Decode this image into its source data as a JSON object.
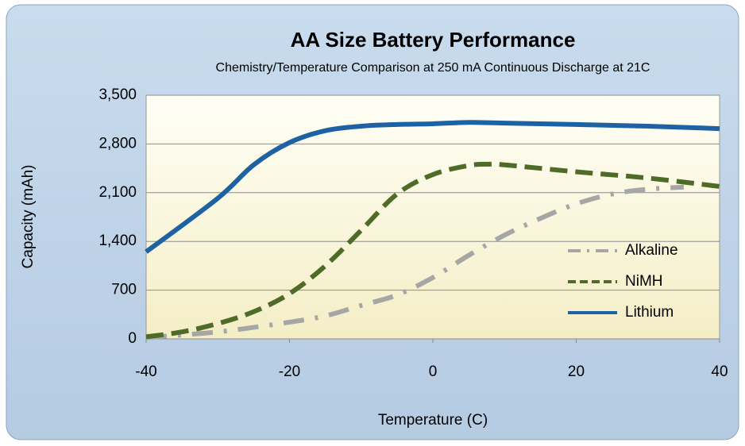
{
  "chart_data": {
    "type": "line",
    "title": "AA Size Battery Performance",
    "subtitle": "Chemistry/Temperature Comparison at 250 mA Continuous Discharge at 21C",
    "x_label": "Temperature (C)",
    "y_label": "Capacity (mAh)",
    "xlim": [
      -40,
      40
    ],
    "xticks": [
      -40,
      -20,
      0,
      20,
      40
    ],
    "ylim": [
      0,
      3500
    ],
    "yticks": [
      0,
      700,
      {
        "value": 1400,
        "label": "1,400"
      },
      {
        "value": 2100,
        "label": "2,100"
      },
      {
        "value": 2800,
        "label": "2,800"
      },
      {
        "value": 3500,
        "label": "3,500"
      }
    ],
    "grid": true,
    "legend": "right",
    "series": [
      {
        "name": "Alkaline",
        "color": "#a6a6a6",
        "style": "dash-dot",
        "x": [
          -40,
          -30,
          -20,
          -15,
          -10,
          -5,
          0,
          5,
          10,
          15,
          20,
          25,
          30,
          35
        ],
        "values": [
          20,
          100,
          240,
          330,
          480,
          630,
          880,
          1200,
          1490,
          1730,
          1940,
          2080,
          2150,
          2180
        ]
      },
      {
        "name": "NiMH",
        "color": "#4f6b28",
        "style": "dashed",
        "x": [
          -40,
          -35,
          -30,
          -25,
          -20,
          -15,
          -10,
          -5,
          0,
          5,
          8,
          10,
          20,
          30,
          40
        ],
        "values": [
          30,
          100,
          220,
          390,
          650,
          1050,
          1560,
          2080,
          2360,
          2490,
          2510,
          2500,
          2400,
          2310,
          2190
        ]
      },
      {
        "name": "Lithium",
        "color": "#1f62a3",
        "style": "solid",
        "x": [
          -40,
          -30,
          -25,
          -20,
          -15,
          -10,
          -5,
          0,
          5,
          10,
          20,
          30,
          40
        ],
        "values": [
          1250,
          2020,
          2500,
          2820,
          2990,
          3055,
          3080,
          3090,
          3110,
          3100,
          3080,
          3055,
          3020
        ]
      }
    ]
  }
}
